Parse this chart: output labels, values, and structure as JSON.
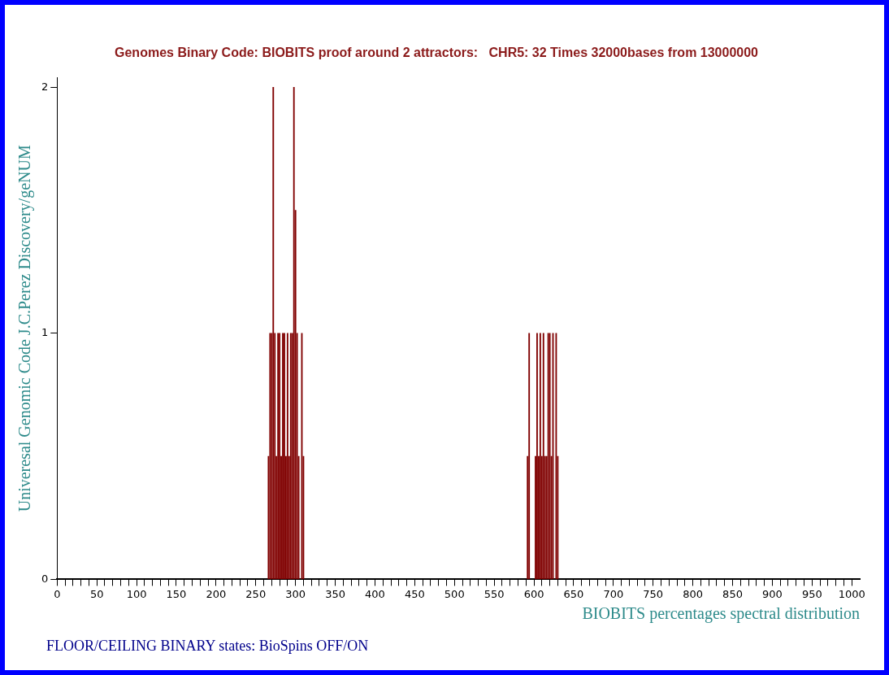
{
  "chart_data": {
    "type": "bar",
    "title": "Genomes Binary Code: BIOBITS proof around 2 attractors:   CHR5: 32 Times 32000bases from 13000000",
    "xlabel": "BIOBITS percentages spectral distribution",
    "ylabel": "Univeresal Genomic Code J.C.Perez Discovery/geNUM",
    "x": [
      266,
      268,
      270,
      272,
      274,
      276,
      278,
      280,
      282,
      284,
      286,
      288,
      290,
      292,
      294,
      296,
      298,
      300,
      302,
      304,
      308,
      310,
      592,
      594,
      602,
      604,
      606,
      608,
      610,
      612,
      614,
      616,
      618,
      620,
      622,
      624,
      628,
      630
    ],
    "series": [
      {
        "name": "FLOOR/CEILING BINARY states: BioSpins OFF/ON",
        "color": "#800000",
        "values": [
          0.5,
          1,
          1,
          2,
          1,
          0.5,
          1,
          1,
          0.5,
          1,
          1,
          0.5,
          1,
          0.5,
          1,
          1,
          2,
          1.5,
          1,
          0.5,
          1,
          0.5,
          0.5,
          1,
          0.5,
          1,
          0.5,
          1,
          0.5,
          1,
          0.5,
          0.5,
          1,
          1,
          0.5,
          1,
          1,
          0.5
        ]
      }
    ],
    "xlim": [
      0,
      1010
    ],
    "ylim": [
      0,
      2.04
    ],
    "yticks": [
      0,
      1,
      2
    ],
    "xticks": [
      0,
      {
        "value": 10,
        "label": null
      },
      {
        "value": 20,
        "label": null
      },
      {
        "value": 30,
        "label": null
      },
      {
        "value": 40,
        "label": null
      },
      50,
      {
        "value": 60,
        "label": null
      },
      {
        "value": 70,
        "label": null
      },
      {
        "value": 80,
        "label": null
      },
      {
        "value": 90,
        "label": null
      },
      100,
      {
        "value": 110,
        "label": null
      },
      {
        "value": 120,
        "label": null
      },
      {
        "value": 130,
        "label": null
      },
      {
        "value": 140,
        "label": null
      },
      150,
      {
        "value": 160,
        "label": null
      },
      {
        "value": 170,
        "label": null
      },
      {
        "value": 180,
        "label": null
      },
      {
        "value": 190,
        "label": null
      },
      200,
      {
        "value": 210,
        "label": null
      },
      {
        "value": 220,
        "label": null
      },
      {
        "value": 230,
        "label": null
      },
      {
        "value": 240,
        "label": null
      },
      250,
      {
        "value": 260,
        "label": null
      },
      {
        "value": 270,
        "label": null
      },
      {
        "value": 280,
        "label": null
      },
      {
        "value": 290,
        "label": null
      },
      300,
      {
        "value": 310,
        "label": null
      },
      {
        "value": 320,
        "label": null
      },
      {
        "value": 330,
        "label": null
      },
      {
        "value": 340,
        "label": null
      },
      350,
      {
        "value": 360,
        "label": null
      },
      {
        "value": 370,
        "label": null
      },
      {
        "value": 380,
        "label": null
      },
      {
        "value": 390,
        "label": null
      },
      400,
      {
        "value": 410,
        "label": null
      },
      {
        "value": 420,
        "label": null
      },
      {
        "value": 430,
        "label": null
      },
      {
        "value": 440,
        "label": null
      },
      450,
      {
        "value": 460,
        "label": null
      },
      {
        "value": 470,
        "label": null
      },
      {
        "value": 480,
        "label": null
      },
      {
        "value": 490,
        "label": null
      },
      500,
      {
        "value": 510,
        "label": null
      },
      {
        "value": 520,
        "label": null
      },
      {
        "value": 530,
        "label": null
      },
      {
        "value": 540,
        "label": null
      },
      550,
      {
        "value": 560,
        "label": null
      },
      {
        "value": 570,
        "label": null
      },
      {
        "value": 580,
        "label": null
      },
      {
        "value": 590,
        "label": null
      },
      600,
      {
        "value": 610,
        "label": null
      },
      {
        "value": 620,
        "label": null
      },
      {
        "value": 630,
        "label": null
      },
      {
        "value": 640,
        "label": null
      },
      650,
      {
        "value": 660,
        "label": null
      },
      {
        "value": 670,
        "label": null
      },
      {
        "value": 680,
        "label": null
      },
      {
        "value": 690,
        "label": null
      },
      700,
      {
        "value": 710,
        "label": null
      },
      {
        "value": 720,
        "label": null
      },
      {
        "value": 730,
        "label": null
      },
      {
        "value": 740,
        "label": null
      },
      750,
      {
        "value": 760,
        "label": null
      },
      {
        "value": 770,
        "label": null
      },
      {
        "value": 780,
        "label": null
      },
      {
        "value": 790,
        "label": null
      },
      800,
      {
        "value": 810,
        "label": null
      },
      {
        "value": 820,
        "label": null
      },
      {
        "value": 830,
        "label": null
      },
      {
        "value": 840,
        "label": null
      },
      850,
      {
        "value": 860,
        "label": null
      },
      {
        "value": 870,
        "label": null
      },
      {
        "value": 880,
        "label": null
      },
      {
        "value": 890,
        "label": null
      },
      900,
      {
        "value": 910,
        "label": null
      },
      {
        "value": 920,
        "label": null
      },
      {
        "value": 930,
        "label": null
      },
      {
        "value": 940,
        "label": null
      },
      950,
      {
        "value": 960,
        "label": null
      },
      {
        "value": 970,
        "label": null
      },
      {
        "value": 980,
        "label": null
      },
      {
        "value": 990,
        "label": null
      },
      1000
    ],
    "grid": false,
    "legend": "bottom left"
  }
}
